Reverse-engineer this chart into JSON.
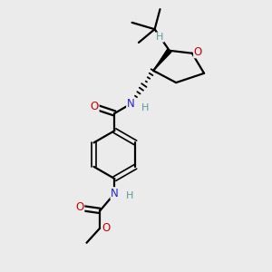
{
  "bg_color": "#ebebeb",
  "atom_colors": {
    "C": "#000000",
    "N": "#2222cc",
    "O": "#cc0000",
    "H": "#5a9a9a"
  },
  "bond_color": "#000000",
  "bond_width": 1.6,
  "figsize": [
    3.0,
    3.0
  ],
  "dpi": 100,
  "xlim": [
    0,
    10
  ],
  "ylim": [
    0,
    10
  ]
}
